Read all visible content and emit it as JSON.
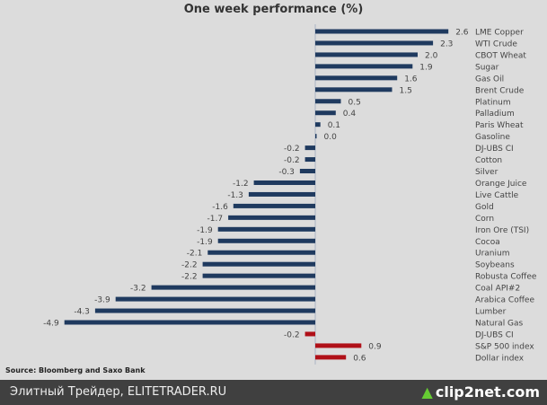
{
  "chart_data": {
    "type": "bar",
    "orientation": "horizontal",
    "title": "One week performance (%)",
    "source": "Source: Bloomberg and Saxo Bank",
    "categories": [
      "LME Copper",
      "WTI Crude",
      "CBOT Wheat",
      "Sugar",
      "Gas Oil",
      "Brent Crude",
      "Platinum",
      "Palladium",
      "Paris Wheat",
      "Gasoline",
      "DJ-UBS CI",
      "Cotton",
      "Silver",
      "Orange Juice",
      "Live Cattle",
      "Gold",
      "Corn",
      "Iron Ore (TSI)",
      "Cocoa",
      "Uranium",
      "Soybeans",
      "Robusta Coffee",
      "Coal API#2",
      "Arabica Coffee",
      "Lumber",
      "Natural Gas",
      "DJ-UBS CI",
      "S&P 500 index",
      "Dollar index"
    ],
    "values": [
      2.6,
      2.3,
      2.0,
      1.9,
      1.6,
      1.5,
      0.5,
      0.4,
      0.1,
      0.0,
      -0.2,
      -0.2,
      -0.3,
      -1.2,
      -1.3,
      -1.6,
      -1.7,
      -1.9,
      -1.9,
      -2.1,
      -2.2,
      -2.2,
      -3.2,
      -3.9,
      -4.3,
      -4.9,
      -0.2,
      0.9,
      0.6
    ],
    "groups": [
      "commodity",
      "commodity",
      "commodity",
      "commodity",
      "commodity",
      "commodity",
      "commodity",
      "commodity",
      "commodity",
      "commodity",
      "commodity",
      "commodity",
      "commodity",
      "commodity",
      "commodity",
      "commodity",
      "commodity",
      "commodity",
      "commodity",
      "commodity",
      "commodity",
      "commodity",
      "commodity",
      "commodity",
      "commodity",
      "commodity",
      "index",
      "index",
      "index"
    ],
    "colors": {
      "commodity": "#1f3a5f",
      "index": "#b01018"
    },
    "xlim": [
      -5,
      2.8
    ]
  },
  "footer": {
    "text": "Элитный Трейдер, ELITETRADER.RU",
    "logo": "clip2net.com"
  }
}
